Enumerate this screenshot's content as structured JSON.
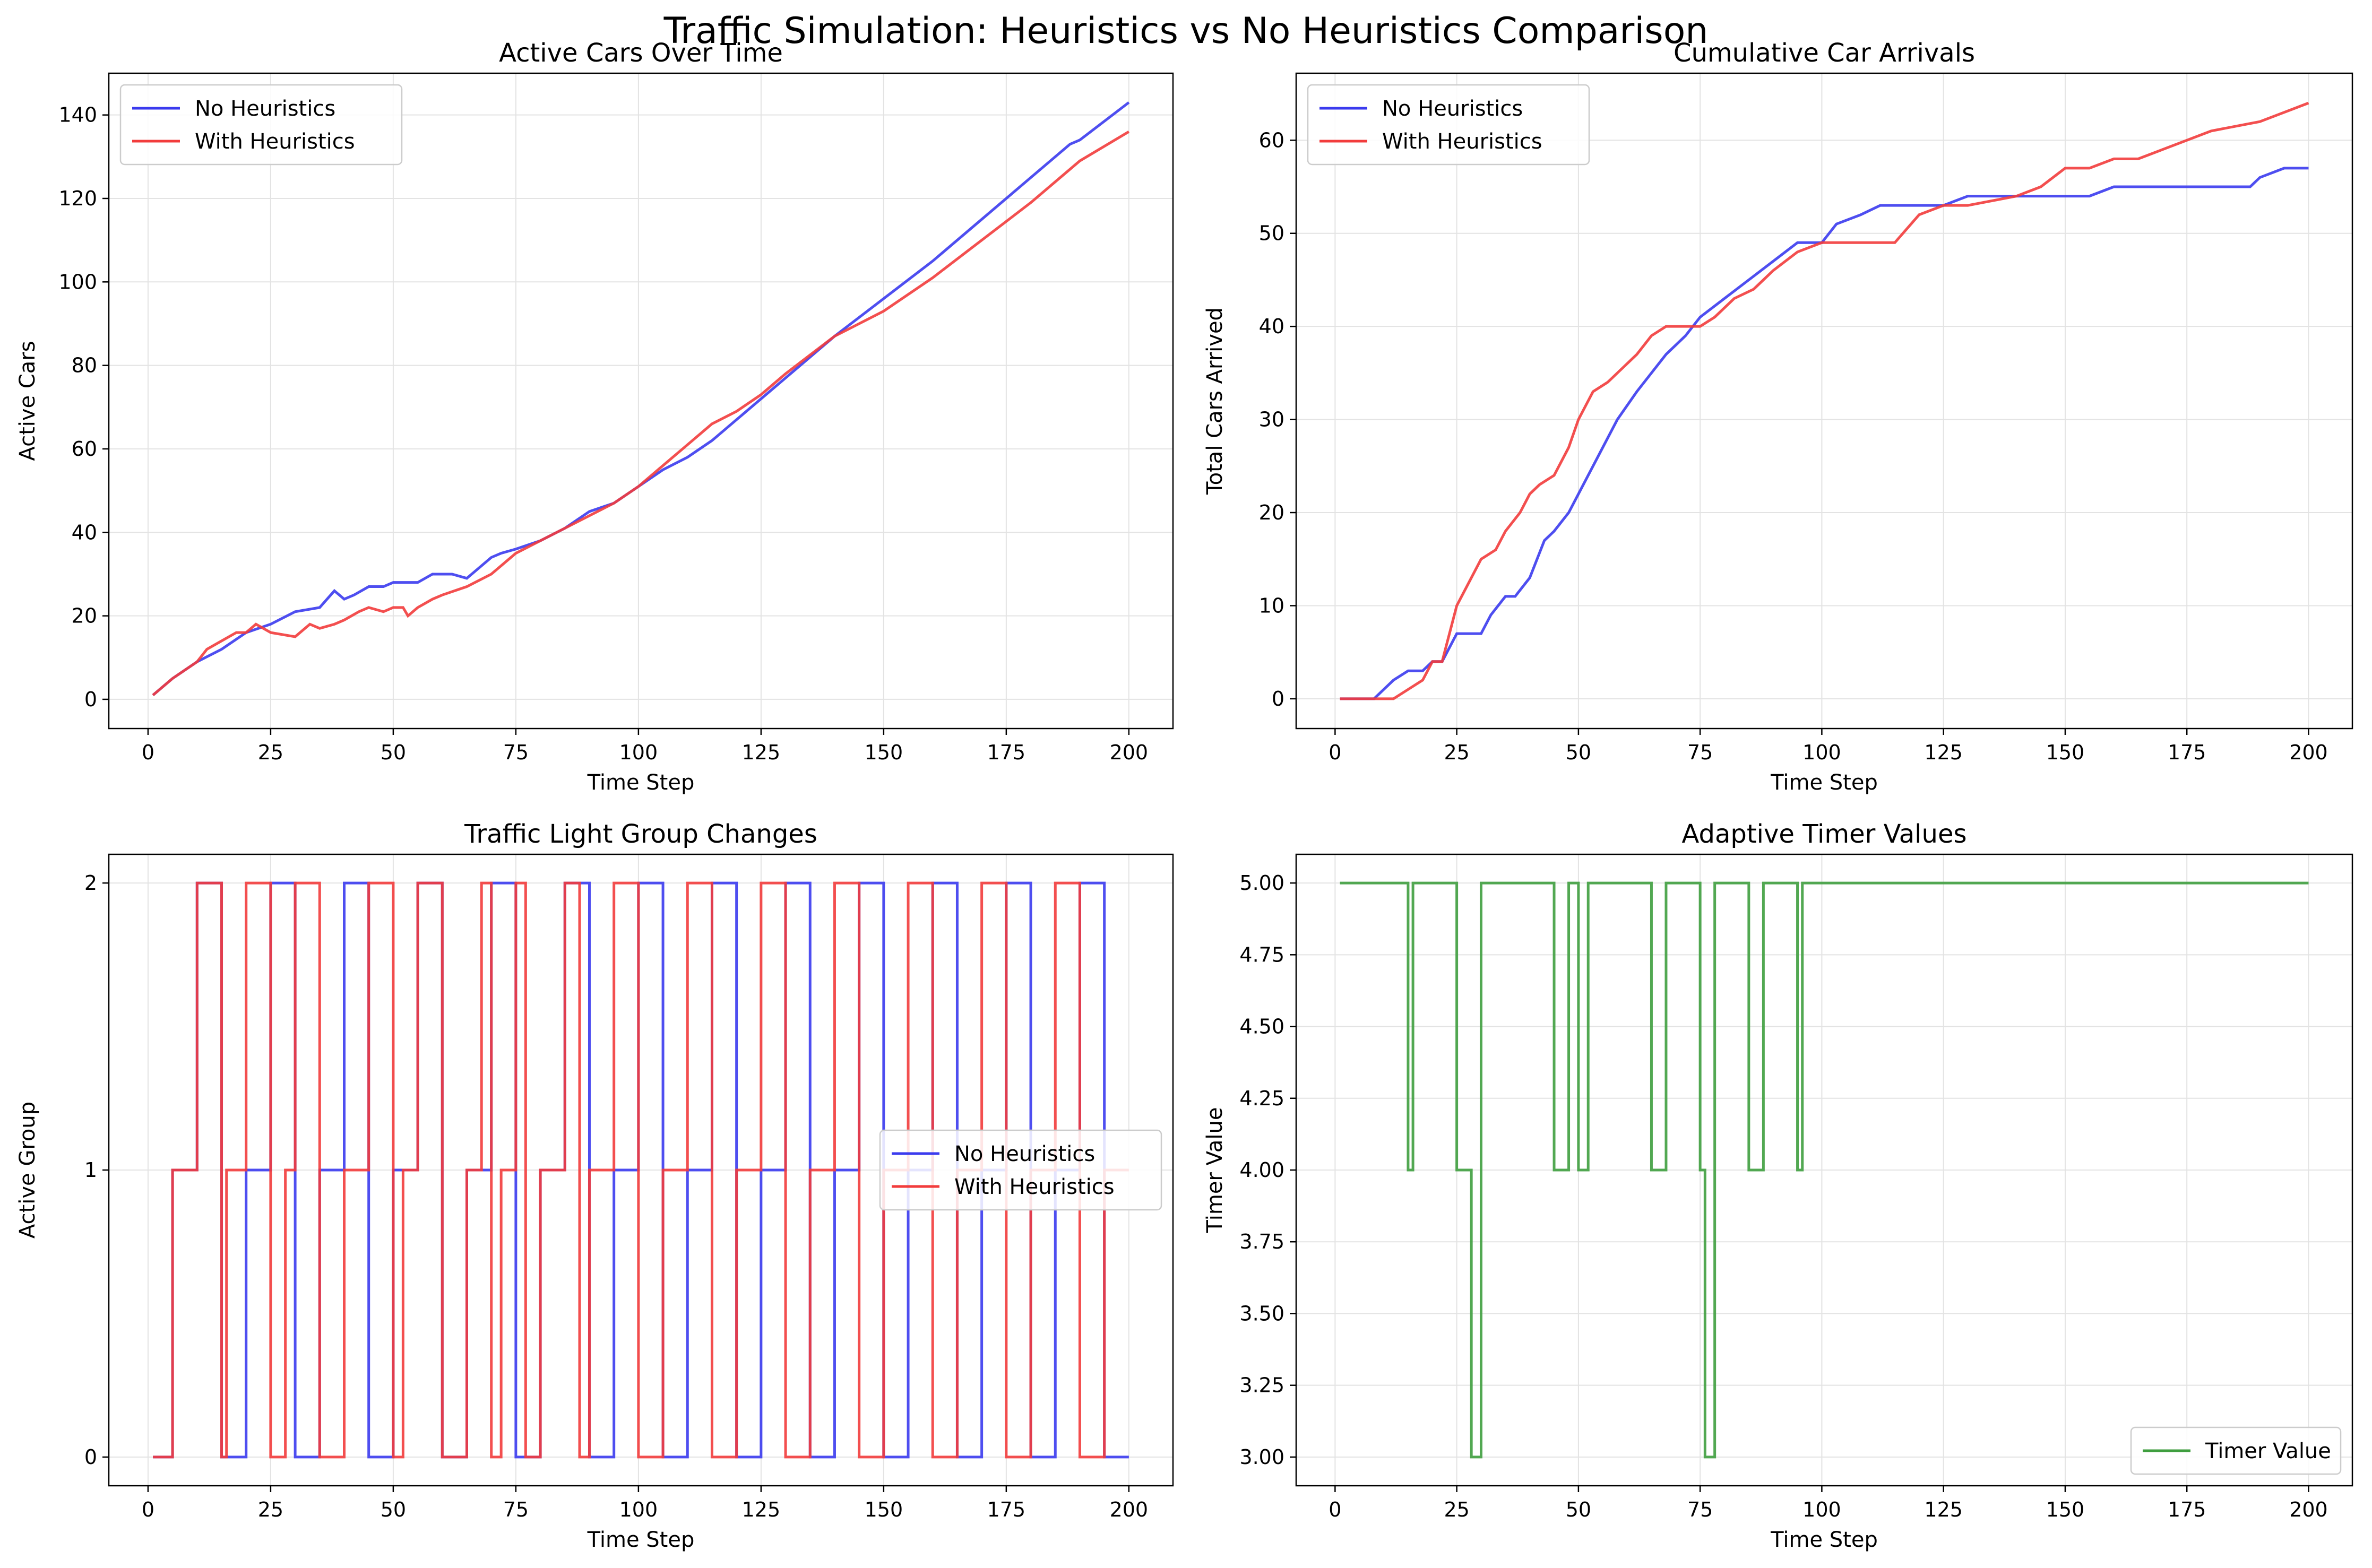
{
  "figure": {
    "title": "Traffic Simulation: Heuristics vs No Heuristics Comparison"
  },
  "colors": {
    "no_heuristics": "#3b3bee",
    "with_heuristics": "#f23c3c",
    "timer": "#3f9e3f",
    "overlap": "#c21a4e"
  },
  "chart_data": [
    {
      "id": "active-cars",
      "type": "line",
      "title": "Active Cars Over Time",
      "xlabel": "Time Step",
      "ylabel": "Active Cars",
      "xlim": [
        -8,
        209
      ],
      "ylim": [
        -7,
        150
      ],
      "xticks": [
        0,
        25,
        50,
        75,
        100,
        125,
        150,
        175,
        200
      ],
      "yticks": [
        0,
        20,
        40,
        60,
        80,
        100,
        120,
        140
      ],
      "grid": true,
      "legend": "top-left",
      "series": [
        {
          "name": "No Heuristics",
          "color": "#3b3bee",
          "x": [
            1,
            5,
            10,
            15,
            20,
            25,
            30,
            35,
            38,
            40,
            42,
            45,
            48,
            50,
            52,
            55,
            58,
            62,
            65,
            70,
            72,
            75,
            80,
            85,
            90,
            95,
            100,
            105,
            110,
            115,
            120,
            125,
            130,
            140,
            150,
            160,
            170,
            180,
            188,
            190,
            200
          ],
          "y": [
            1,
            5,
            9,
            12,
            16,
            18,
            21,
            22,
            26,
            24,
            25,
            27,
            27,
            28,
            28,
            28,
            30,
            30,
            29,
            34,
            35,
            36,
            38,
            41,
            45,
            47,
            51,
            55,
            58,
            62,
            67,
            72,
            77,
            87,
            96,
            105,
            115,
            125,
            133,
            134,
            143
          ]
        },
        {
          "name": "With Heuristics",
          "color": "#f23c3c",
          "x": [
            1,
            5,
            10,
            12,
            15,
            18,
            20,
            22,
            25,
            30,
            33,
            35,
            38,
            40,
            43,
            45,
            48,
            50,
            52,
            53,
            55,
            58,
            60,
            65,
            70,
            75,
            80,
            85,
            90,
            95,
            100,
            105,
            110,
            115,
            120,
            125,
            130,
            140,
            150,
            160,
            170,
            180,
            190,
            200
          ],
          "y": [
            1,
            5,
            9,
            12,
            14,
            16,
            16,
            18,
            16,
            15,
            18,
            17,
            18,
            19,
            21,
            22,
            21,
            22,
            22,
            20,
            22,
            24,
            25,
            27,
            30,
            35,
            38,
            41,
            44,
            47,
            51,
            56,
            61,
            66,
            69,
            73,
            78,
            87,
            93,
            101,
            110,
            119,
            129,
            136
          ]
        }
      ]
    },
    {
      "id": "cumulative-arrivals",
      "type": "line",
      "title": "Cumulative Car Arrivals",
      "xlabel": "Time Step",
      "ylabel": "Total Cars Arrived",
      "xlim": [
        -8,
        209
      ],
      "ylim": [
        -3.2,
        67.2
      ],
      "xticks": [
        0,
        25,
        50,
        75,
        100,
        125,
        150,
        175,
        200
      ],
      "yticks": [
        0,
        10,
        20,
        30,
        40,
        50,
        60
      ],
      "grid": true,
      "legend": "top-left",
      "series": [
        {
          "name": "No Heuristics",
          "color": "#3b3bee",
          "x": [
            1,
            8,
            10,
            12,
            15,
            18,
            20,
            22,
            25,
            30,
            32,
            35,
            37,
            40,
            43,
            45,
            48,
            50,
            52,
            55,
            58,
            62,
            65,
            68,
            72,
            75,
            80,
            85,
            90,
            95,
            100,
            103,
            108,
            112,
            118,
            125,
            130,
            135,
            140,
            145,
            150,
            155,
            160,
            170,
            180,
            188,
            190,
            195,
            200
          ],
          "y": [
            0,
            0,
            1,
            2,
            3,
            3,
            4,
            4,
            7,
            7,
            9,
            11,
            11,
            13,
            17,
            18,
            20,
            22,
            24,
            27,
            30,
            33,
            35,
            37,
            39,
            41,
            43,
            45,
            47,
            49,
            49,
            51,
            52,
            53,
            53,
            53,
            54,
            54,
            54,
            54,
            54,
            54,
            55,
            55,
            55,
            55,
            56,
            57,
            57
          ]
        },
        {
          "name": "With Heuristics",
          "color": "#f23c3c",
          "x": [
            1,
            12,
            15,
            18,
            20,
            22,
            25,
            28,
            30,
            33,
            35,
            38,
            40,
            42,
            45,
            48,
            50,
            53,
            56,
            58,
            62,
            65,
            68,
            72,
            75,
            78,
            82,
            86,
            90,
            95,
            100,
            105,
            110,
            115,
            120,
            125,
            130,
            140,
            145,
            150,
            155,
            160,
            165,
            170,
            175,
            180,
            190,
            195,
            200
          ],
          "y": [
            0,
            0,
            1,
            2,
            4,
            4,
            10,
            13,
            15,
            16,
            18,
            20,
            22,
            23,
            24,
            27,
            30,
            33,
            34,
            35,
            37,
            39,
            40,
            40,
            40,
            41,
            43,
            44,
            46,
            48,
            49,
            49,
            49,
            49,
            52,
            53,
            53,
            54,
            55,
            57,
            57,
            58,
            58,
            59,
            60,
            61,
            62,
            63,
            64
          ]
        }
      ]
    },
    {
      "id": "group-changes",
      "type": "line",
      "title": "Traffic Light Group Changes",
      "xlabel": "Time Step",
      "ylabel": "Active Group",
      "xlim": [
        -8,
        209
      ],
      "ylim": [
        -0.1,
        2.1
      ],
      "xticks": [
        0,
        25,
        50,
        75,
        100,
        125,
        150,
        175,
        200
      ],
      "yticks": [
        0,
        1,
        2
      ],
      "grid": true,
      "legend": "center-right",
      "series": [
        {
          "name": "No Heuristics",
          "color": "#3b3bee",
          "x": [
            1,
            5,
            10,
            15,
            20,
            25,
            30,
            35,
            40,
            45,
            50,
            55,
            60,
            65,
            70,
            75,
            80,
            85,
            90,
            95,
            100,
            105,
            110,
            115,
            120,
            125,
            130,
            135,
            140,
            145,
            150,
            155,
            160,
            165,
            170,
            175,
            180,
            185,
            190,
            195
          ],
          "y": [
            0,
            1,
            2,
            0,
            1,
            2,
            0,
            1,
            2,
            0,
            1,
            2,
            0,
            1,
            2,
            0,
            1,
            2,
            0,
            1,
            2,
            0,
            1,
            2,
            0,
            1,
            2,
            0,
            1,
            2,
            0,
            1,
            2,
            0,
            1,
            2,
            0,
            1,
            2,
            0
          ]
        },
        {
          "name": "With Heuristics",
          "color": "#f23c3c",
          "x": [
            1,
            5,
            10,
            15,
            16,
            20,
            25,
            28,
            30,
            35,
            40,
            45,
            50,
            52,
            55,
            60,
            65,
            68,
            70,
            72,
            75,
            77,
            80,
            85,
            88,
            90,
            95,
            100,
            105,
            110,
            115,
            120,
            125,
            130,
            135,
            140,
            145,
            150,
            155,
            160,
            165,
            170,
            175,
            180,
            185,
            190,
            195
          ],
          "y": [
            0,
            1,
            2,
            0,
            1,
            2,
            0,
            1,
            2,
            0,
            1,
            2,
            0,
            1,
            2,
            0,
            1,
            2,
            0,
            1,
            2,
            0,
            1,
            2,
            0,
            1,
            2,
            0,
            1,
            2,
            0,
            1,
            2,
            0,
            1,
            2,
            0,
            1,
            2,
            0,
            1,
            2,
            0,
            1,
            2,
            0,
            1
          ]
        }
      ]
    },
    {
      "id": "adaptive-timer",
      "type": "line",
      "title": "Adaptive Timer Values",
      "xlabel": "Time Step",
      "ylabel": "Timer Value",
      "xlim": [
        -8,
        209
      ],
      "ylim": [
        2.9,
        5.1
      ],
      "xticks": [
        0,
        25,
        50,
        75,
        100,
        125,
        150,
        175,
        200
      ],
      "yticks": [
        3.0,
        3.25,
        3.5,
        3.75,
        4.0,
        4.25,
        4.5,
        4.75,
        5.0
      ],
      "ytick_labels": [
        "3.00",
        "3.25",
        "3.50",
        "3.75",
        "4.00",
        "4.25",
        "4.50",
        "4.75",
        "5.00"
      ],
      "grid": true,
      "legend": "bottom-right",
      "series": [
        {
          "name": "Timer Value",
          "color": "#3f9e3f",
          "x": [
            1,
            15,
            16,
            25,
            28,
            30,
            45,
            48,
            50,
            52,
            65,
            68,
            75,
            76,
            78,
            85,
            88,
            95,
            96,
            200
          ],
          "y": [
            5,
            4,
            5,
            4,
            3,
            5,
            4,
            5,
            4,
            5,
            4,
            5,
            4,
            3,
            5,
            4,
            5,
            4,
            5,
            5
          ]
        }
      ]
    }
  ]
}
